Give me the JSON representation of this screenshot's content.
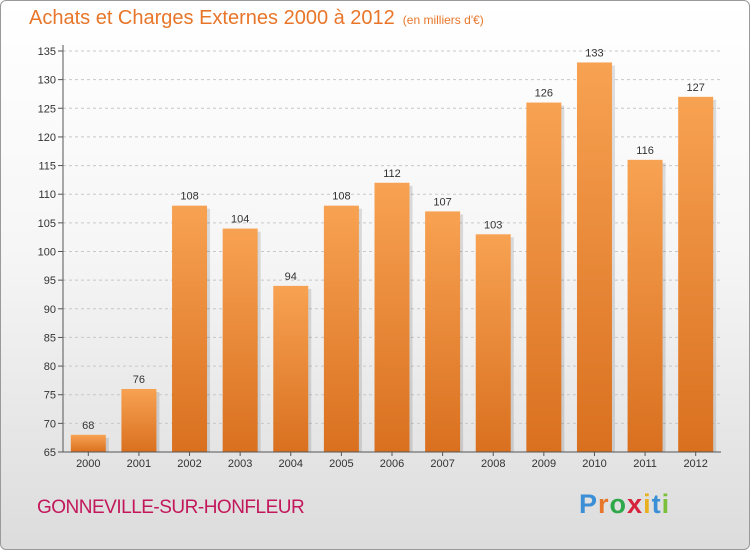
{
  "header": {
    "title": "Achats et Charges Externes 2000 à 2012",
    "unit": "(en milliers d'€)"
  },
  "footer": {
    "city": "GONNEVILLE-SUR-HONFLEUR",
    "logo_letters": [
      "P",
      "r",
      "o",
      "x",
      "i",
      "t",
      "i"
    ]
  },
  "colors": {
    "title": "#e8762a",
    "bar_top": "#f7a252",
    "bar_bottom": "#d9701f",
    "city": "#c2185b"
  },
  "chart_data": {
    "type": "bar",
    "title": "Achats et Charges Externes 2000 à 2012",
    "subtitle": "(en milliers d'€)",
    "categories": [
      "2000",
      "2001",
      "2002",
      "2003",
      "2004",
      "2005",
      "2006",
      "2007",
      "2008",
      "2009",
      "2010",
      "2011",
      "2012"
    ],
    "values": [
      68,
      76,
      108,
      104,
      94,
      108,
      112,
      107,
      103,
      126,
      133,
      116,
      127
    ],
    "ylim": [
      65,
      135
    ],
    "yticks": [
      65,
      70,
      75,
      80,
      85,
      90,
      95,
      100,
      105,
      110,
      115,
      120,
      125,
      130,
      135
    ],
    "grid": "horizontal-dashed",
    "legend": "none"
  }
}
